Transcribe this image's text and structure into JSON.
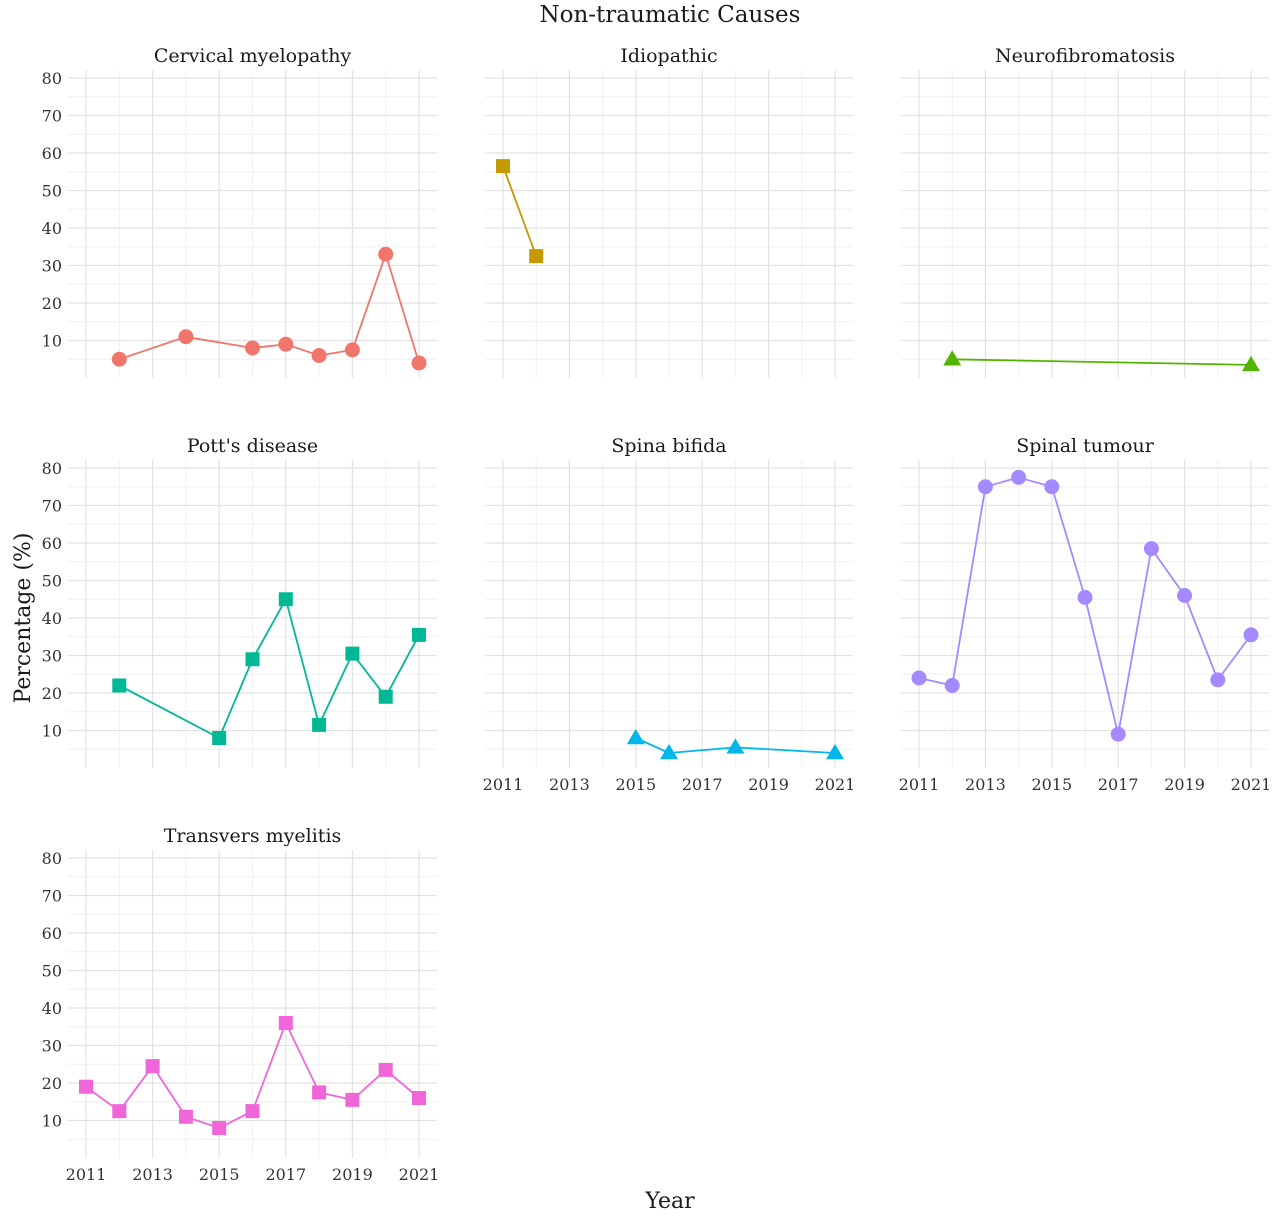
{
  "figure": {
    "title": "Non-traumatic Causes",
    "xlabel": "Year",
    "ylabel": "Percentage (%)"
  },
  "chart_data": [
    {
      "type": "line",
      "title": "Cervical myelopathy",
      "color": "#F0766C",
      "marker": "circle",
      "x": [
        2012,
        2014,
        2016,
        2017,
        2018,
        2019,
        2020,
        2021
      ],
      "y": [
        5,
        11,
        8,
        9,
        6,
        7.5,
        33,
        4
      ],
      "xlim": [
        2011,
        2021
      ],
      "ylim": [
        0,
        80
      ],
      "yticks": [
        "10",
        "20",
        "30",
        "40",
        "50",
        "60",
        "70",
        "80"
      ],
      "xticks": [],
      "grid": true
    },
    {
      "type": "line",
      "title": "Idiopathic",
      "color": "#C49A00",
      "marker": "square",
      "x": [
        2011,
        2012
      ],
      "y": [
        56.5,
        32.5
      ],
      "xlim": [
        2011,
        2021
      ],
      "ylim": [
        0,
        80
      ],
      "yticks": [],
      "xticks": [],
      "grid": true
    },
    {
      "type": "line",
      "title": "Neurofibromatosis",
      "color": "#53B400",
      "marker": "triangle",
      "x": [
        2012,
        2021
      ],
      "y": [
        5,
        3.5
      ],
      "xlim": [
        2011,
        2021
      ],
      "ylim": [
        0,
        80
      ],
      "yticks": [],
      "xticks": [],
      "grid": true
    },
    {
      "type": "line",
      "title": "Pott's disease",
      "color": "#00B894",
      "marker": "square",
      "x": [
        2012,
        2015,
        2016,
        2017,
        2018,
        2019,
        2020,
        2021
      ],
      "y": [
        22,
        8,
        29,
        45,
        11.5,
        30.5,
        19,
        35.5
      ],
      "xlim": [
        2011,
        2021
      ],
      "ylim": [
        0,
        80
      ],
      "yticks": [
        "10",
        "20",
        "30",
        "40",
        "50",
        "60",
        "70",
        "80"
      ],
      "xticks": [],
      "grid": true
    },
    {
      "type": "line",
      "title": "Spina bifida",
      "color": "#00B6EB",
      "marker": "triangle",
      "x": [
        2015,
        2016,
        2018,
        2021
      ],
      "y": [
        8,
        4,
        5.5,
        4
      ],
      "xlim": [
        2011,
        2021
      ],
      "ylim": [
        0,
        80
      ],
      "yticks": [],
      "xticks": [
        "2011",
        "2013",
        "2015",
        "2017",
        "2019",
        "2021"
      ],
      "grid": true
    },
    {
      "type": "line",
      "title": "Spinal tumour",
      "color": "#A58AFF",
      "marker": "circle",
      "x": [
        2011,
        2012,
        2013,
        2014,
        2015,
        2016,
        2017,
        2018,
        2019,
        2020,
        2021
      ],
      "y": [
        24,
        22,
        75,
        77.5,
        75,
        45.5,
        9,
        58.5,
        46,
        23.5,
        35.5
      ],
      "xlim": [
        2011,
        2021
      ],
      "ylim": [
        0,
        80
      ],
      "yticks": [],
      "xticks": [
        "2011",
        "2013",
        "2015",
        "2017",
        "2019",
        "2021"
      ],
      "grid": true
    },
    {
      "type": "line",
      "title": "Transvers myelitis",
      "color": "#F066D8",
      "marker": "square",
      "x": [
        2011,
        2012,
        2013,
        2014,
        2015,
        2016,
        2017,
        2018,
        2019,
        2020,
        2021
      ],
      "y": [
        19,
        12.5,
        24.5,
        11,
        8,
        12.5,
        36,
        17.5,
        15.5,
        23.5,
        16
      ],
      "xlim": [
        2011,
        2021
      ],
      "ylim": [
        0,
        80
      ],
      "yticks": [
        "10",
        "20",
        "30",
        "40",
        "50",
        "60",
        "70",
        "80"
      ],
      "xticks": [
        "2011",
        "2013",
        "2015",
        "2017",
        "2019",
        "2021"
      ],
      "grid": true
    }
  ]
}
